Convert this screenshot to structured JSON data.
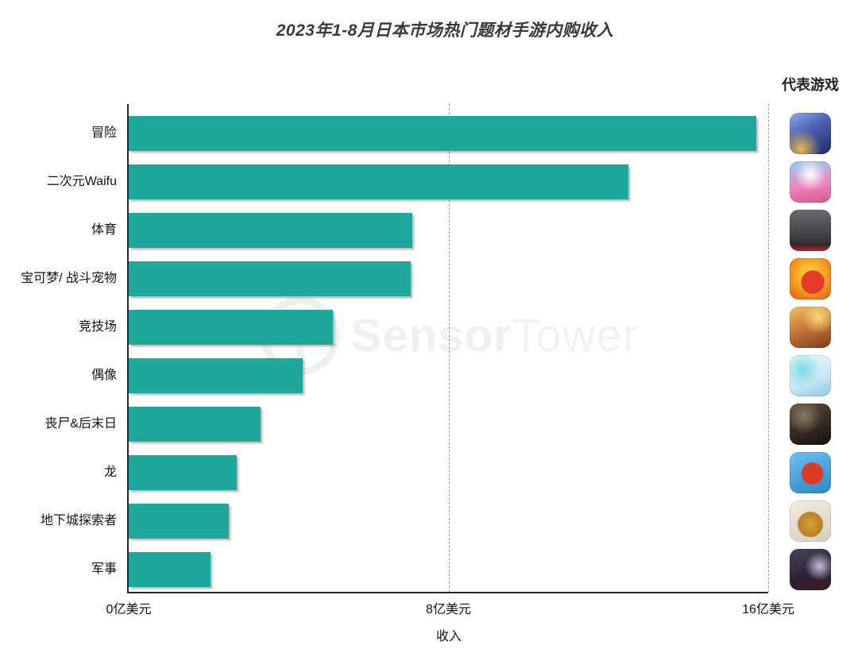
{
  "title": "2023年1-8月日本市场热门题材手游内购收入",
  "icons_header": "代表游戏",
  "watermark": {
    "bold": "Sensor",
    "light": "Tower"
  },
  "chart_data": {
    "type": "bar",
    "orientation": "horizontal",
    "title": "2023年1-8月日本市场热门题材手游内购收入",
    "categories": [
      "冒险",
      "二次元Waifu",
      "体育",
      "宝可梦/ 战斗宠物",
      "竞技场",
      "偶像",
      "丧尸&后末日",
      "龙",
      "地下城探索者",
      "军事"
    ],
    "values": [
      15.7,
      12.5,
      7.1,
      7.05,
      5.1,
      4.35,
      3.3,
      2.7,
      2.5,
      2.05
    ],
    "unit": "亿美元",
    "xlabel": "收入",
    "xlim": [
      0,
      16
    ],
    "x_ticks": [
      {
        "value": 0,
        "label": "0亿美元"
      },
      {
        "value": 8,
        "label": "8亿美元"
      },
      {
        "value": 16,
        "label": "16亿美元"
      }
    ],
    "gridlines_dashed_at": [
      8,
      16
    ],
    "legend_position": "none",
    "bar_color": "#1FA79E",
    "axis_color": "#262626",
    "watermark_color": "#f0f0f0"
  },
  "representative_games": [
    {
      "genre": "冒险",
      "icon": "game-icon-adventure",
      "background": "radial-gradient(circle at 28% 88%, #e8b84b 0%, rgba(232,184,75,0) 42%), linear-gradient(150deg, #8fa8e8 0%, #4a5fb0 45%, #1d2a66 100%)"
    },
    {
      "genre": "二次元Waifu",
      "icon": "game-icon-anime-waifu",
      "background": "radial-gradient(circle at 50% 32%, #ffffff 0%, rgba(255,255,255,0) 46%), linear-gradient(170deg, #8ed0f5 0%, #ef86c0 55%, #d8568e 100%)"
    },
    {
      "genre": "体育",
      "icon": "game-icon-sports",
      "background": "linear-gradient(180deg, #6a6a70 0%, #38383c 74%, #2a2a2e 84%, #c02020 100%)"
    },
    {
      "genre": "宝可梦/ 战斗宠物",
      "icon": "game-icon-battle-pets",
      "background": "radial-gradient(circle at 56% 58%, #e83a28 0%, #e83a28 34%, rgba(232,58,40,0) 36%), radial-gradient(circle at 50% 40%, #ffd84a 0%, #f59a1e 55%, #d9541a 100%)"
    },
    {
      "genre": "竞技场",
      "icon": "game-icon-arena",
      "background": "radial-gradient(circle at 70% 25%, #f5d878 0%, rgba(245,216,120,0) 40%), linear-gradient(160deg, #f0c060 0%, #c8783a 48%, #7a3c1a 100%)"
    },
    {
      "genre": "偶像",
      "icon": "game-icon-idol",
      "background": "radial-gradient(circle at 32% 35%, #7adce8 0%, rgba(122,220,232,0) 48%), linear-gradient(160deg, #eef8fb 0%, #c8e8f4 60%, #8fc8e0 100%)"
    },
    {
      "genre": "丧尸&后末日",
      "icon": "game-icon-zombie-postapocalypse",
      "background": "radial-gradient(circle at 35% 30%, #8a7a62 0%, rgba(138,122,98,0) 45%), linear-gradient(160deg, #5a4c3c 0%, #352c22 55%, #14100c 100%)"
    },
    {
      "genre": "龙",
      "icon": "game-icon-dragon",
      "background": "radial-gradient(circle at 55% 52%, #e03a26 0%, #e03a26 34%, rgba(224,58,38,0) 36%), linear-gradient(160deg, #6ec0f0 0%, #2f86c8 100%)"
    },
    {
      "genre": "地下城探索者",
      "icon": "game-icon-dungeon-crawler",
      "background": "radial-gradient(circle at 50% 58%, #d8a23a 0%, #b87f28 38%, rgba(184,127,40,0) 42%), linear-gradient(160deg, #f2ede0 0%, #d5cfc0 100%)"
    },
    {
      "genre": "军事",
      "icon": "game-icon-military",
      "background": "radial-gradient(circle at 72% 42%, #c8c0d8 0%, rgba(200,192,216,0) 38%), linear-gradient(160deg, #4a4258 0%, #2a2233 60%, #3a1a22 100%)"
    }
  ]
}
